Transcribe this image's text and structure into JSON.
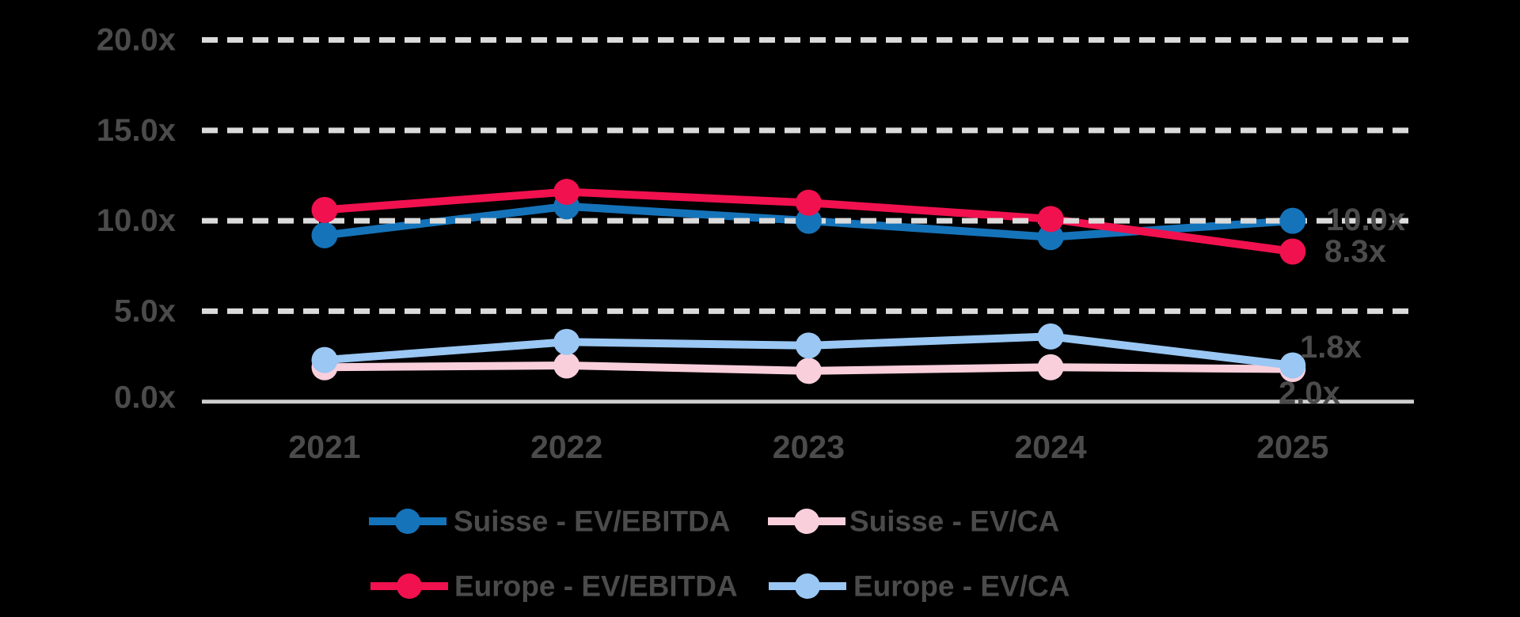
{
  "chart_data": {
    "type": "line",
    "title": "",
    "categories": [
      "2021",
      "2022",
      "2023",
      "2024",
      "2025"
    ],
    "series": [
      {
        "name": "Suisse - EV/EBITDA",
        "color": "#1573BA",
        "values": [
          9.2,
          10.8,
          10.0,
          9.1,
          10.0
        ],
        "end_label": "10.0x"
      },
      {
        "name": "Suisse - EV/CA",
        "color": "#F9CFDC",
        "values": [
          1.9,
          2.0,
          1.7,
          1.9,
          1.8
        ],
        "end_label": "1.8x"
      },
      {
        "name": "Europe - EV/EBITDA",
        "color": "#F0114E",
        "values": [
          10.6,
          11.6,
          11.0,
          10.1,
          8.3
        ],
        "end_label": "8.3x"
      },
      {
        "name": "Europe - EV/CA",
        "color": "#9AC7F3",
        "values": [
          2.3,
          3.3,
          3.1,
          3.6,
          2.0
        ],
        "end_label": "2.0x"
      }
    ],
    "y_ticks": [
      {
        "label": "20.0x",
        "value": 20
      },
      {
        "label": "15.0x",
        "value": 15
      },
      {
        "label": "10.0x",
        "value": 10
      },
      {
        "label": "5.0x",
        "value": 5
      },
      {
        "label": "0.0x",
        "value": 0
      }
    ],
    "ylim": [
      0,
      21.5
    ],
    "grid": "horizontal-dashed",
    "legend_position": "bottom",
    "legend_rows": [
      [
        "Suisse - EV/EBITDA",
        "Suisse - EV/CA"
      ],
      [
        "Europe - EV/EBITDA",
        "Europe - EV/CA"
      ]
    ],
    "colors": {
      "background": "#000000",
      "gridline": "#DBDBDB",
      "axis_line": "#CFCFCF",
      "text": "#4B4B4B"
    }
  }
}
